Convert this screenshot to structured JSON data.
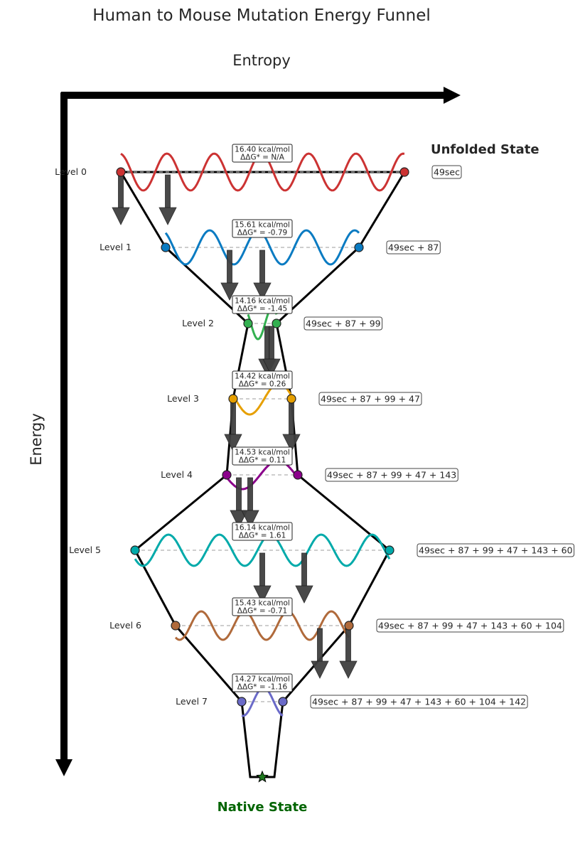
{
  "title": "Human to Mouse Mutation Energy Funnel",
  "x_axis_label": "Entropy",
  "y_axis_label": "Energy",
  "unfolded_label": "Unfolded State",
  "native_label": "Native State",
  "colors": {
    "funnel_outline": "#000000",
    "arrow": "#404040",
    "native_star": "#1f7a1f",
    "native_text": "#006400"
  },
  "levels": [
    {
      "label": "Level 0",
      "energy": "16.40 kcal/mol",
      "ddg": "ΔΔG* = N/A",
      "sequence": "49sec",
      "color": "#cc3333"
    },
    {
      "label": "Level 1",
      "energy": "15.61 kcal/mol",
      "ddg": "ΔΔG* = -0.79",
      "sequence": "49sec + 87",
      "color": "#0a7bc2"
    },
    {
      "label": "Level 2",
      "energy": "14.16 kcal/mol",
      "ddg": "ΔΔG* = -1.45",
      "sequence": "49sec + 87 + 99",
      "color": "#33b050"
    },
    {
      "label": "Level 3",
      "energy": "14.42 kcal/mol",
      "ddg": "ΔΔG* = 0.26",
      "sequence": "49sec + 87 + 99 + 47",
      "color": "#e69f00"
    },
    {
      "label": "Level 4",
      "energy": "14.53 kcal/mol",
      "ddg": "ΔΔG* = 0.11",
      "sequence": "49sec + 87 + 99 + 47 + 143",
      "color": "#8b008b"
    },
    {
      "label": "Level 5",
      "energy": "16.14 kcal/mol",
      "ddg": "ΔΔG* = 1.61",
      "sequence": "49sec + 87 + 99 + 47 + 143 + 60",
      "color": "#00aaaa"
    },
    {
      "label": "Level 6",
      "energy": "15.43 kcal/mol",
      "ddg": "ΔΔG* = -0.71",
      "sequence": "49sec + 87 + 99 + 47 + 143 + 60 + 104",
      "color": "#b06a3b"
    },
    {
      "label": "Level 7",
      "energy": "14.27 kcal/mol",
      "ddg": "ΔΔG* = -1.16",
      "sequence": "49sec + 87 + 99 + 47 + 143 + 60 + 104 + 142",
      "color": "#6a6ac8"
    }
  ]
}
